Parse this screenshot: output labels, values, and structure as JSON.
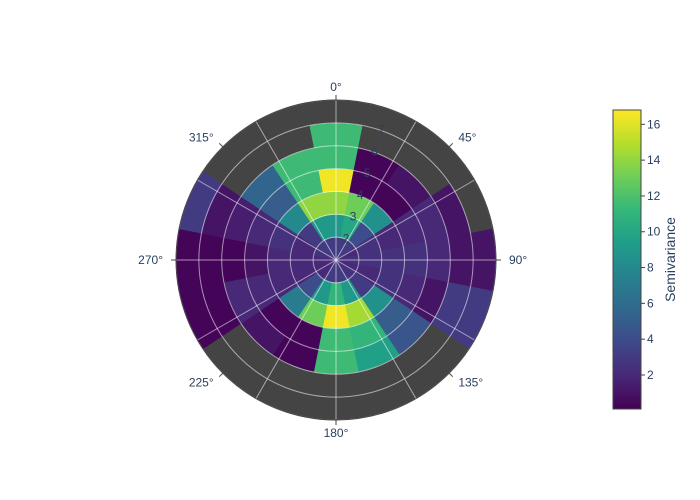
{
  "chart_data": {
    "type": "polar_heatmap",
    "title": "",
    "angular_unit": "deg",
    "angular_direction": "clockwise",
    "angular_zero": "top",
    "angular_ticks": [
      "0°",
      "45°",
      "90°",
      "135°",
      "180°",
      "225°",
      "270°",
      "315°"
    ],
    "radial_ticks": [
      "2",
      "3",
      "4",
      "5",
      "6",
      "7"
    ],
    "radial_range": [
      1,
      8
    ],
    "radial_bins": [
      1,
      2,
      3,
      4,
      5,
      6,
      7,
      8
    ],
    "azimuth_bin_width": 22.5,
    "azimuth_bin_centers": [
      0,
      22.5,
      45,
      67.5,
      90,
      112.5,
      135,
      157.5,
      180,
      202.5,
      225,
      247.5,
      270,
      292.5,
      315,
      337.5
    ],
    "z": [
      [
        3,
        9,
        14,
        16.5,
        11.5,
        11.5,
        null
      ],
      [
        3,
        10,
        13,
        0.3,
        0.3,
        null,
        null
      ],
      [
        3,
        4,
        8.5,
        0.3,
        1,
        null,
        null
      ],
      [
        2,
        2.5,
        2,
        2,
        2,
        1,
        null
      ],
      [
        2.5,
        2.5,
        2.5,
        2.5,
        2,
        1,
        1
      ],
      [
        2,
        2,
        2.5,
        2,
        1,
        3,
        3
      ],
      [
        2.5,
        3,
        8.5,
        5,
        4.5,
        null,
        null
      ],
      [
        3,
        9,
        14.5,
        11,
        9.5,
        null,
        null
      ],
      [
        3,
        11,
        16.5,
        11.5,
        11.5,
        null,
        null
      ],
      [
        3,
        9,
        13,
        0.3,
        0.3,
        null,
        null
      ],
      [
        2,
        4,
        7,
        0.3,
        1,
        null,
        null
      ],
      [
        2,
        2,
        2,
        2,
        2,
        0.3,
        0.3
      ],
      [
        2,
        2,
        2,
        1,
        0.3,
        0.3,
        0.3
      ],
      [
        2.5,
        2,
        2.5,
        2,
        1.5,
        1,
        3
      ],
      [
        3,
        3,
        8,
        5,
        5.5,
        null,
        null
      ],
      [
        3,
        9,
        14,
        11.5,
        11.5,
        null,
        null
      ]
    ],
    "missing_color": "#444444",
    "colorscale": "Viridis",
    "zmin": 0.1,
    "zmax": 16.8,
    "colorbar": {
      "title": "Semivariance",
      "ticks": [
        2,
        4,
        6,
        8,
        10,
        12,
        14,
        16
      ],
      "tick_labels": [
        "2",
        "4",
        "6",
        "8",
        "10",
        "12",
        "14",
        "16"
      ]
    },
    "grid": true,
    "legend": "none"
  }
}
